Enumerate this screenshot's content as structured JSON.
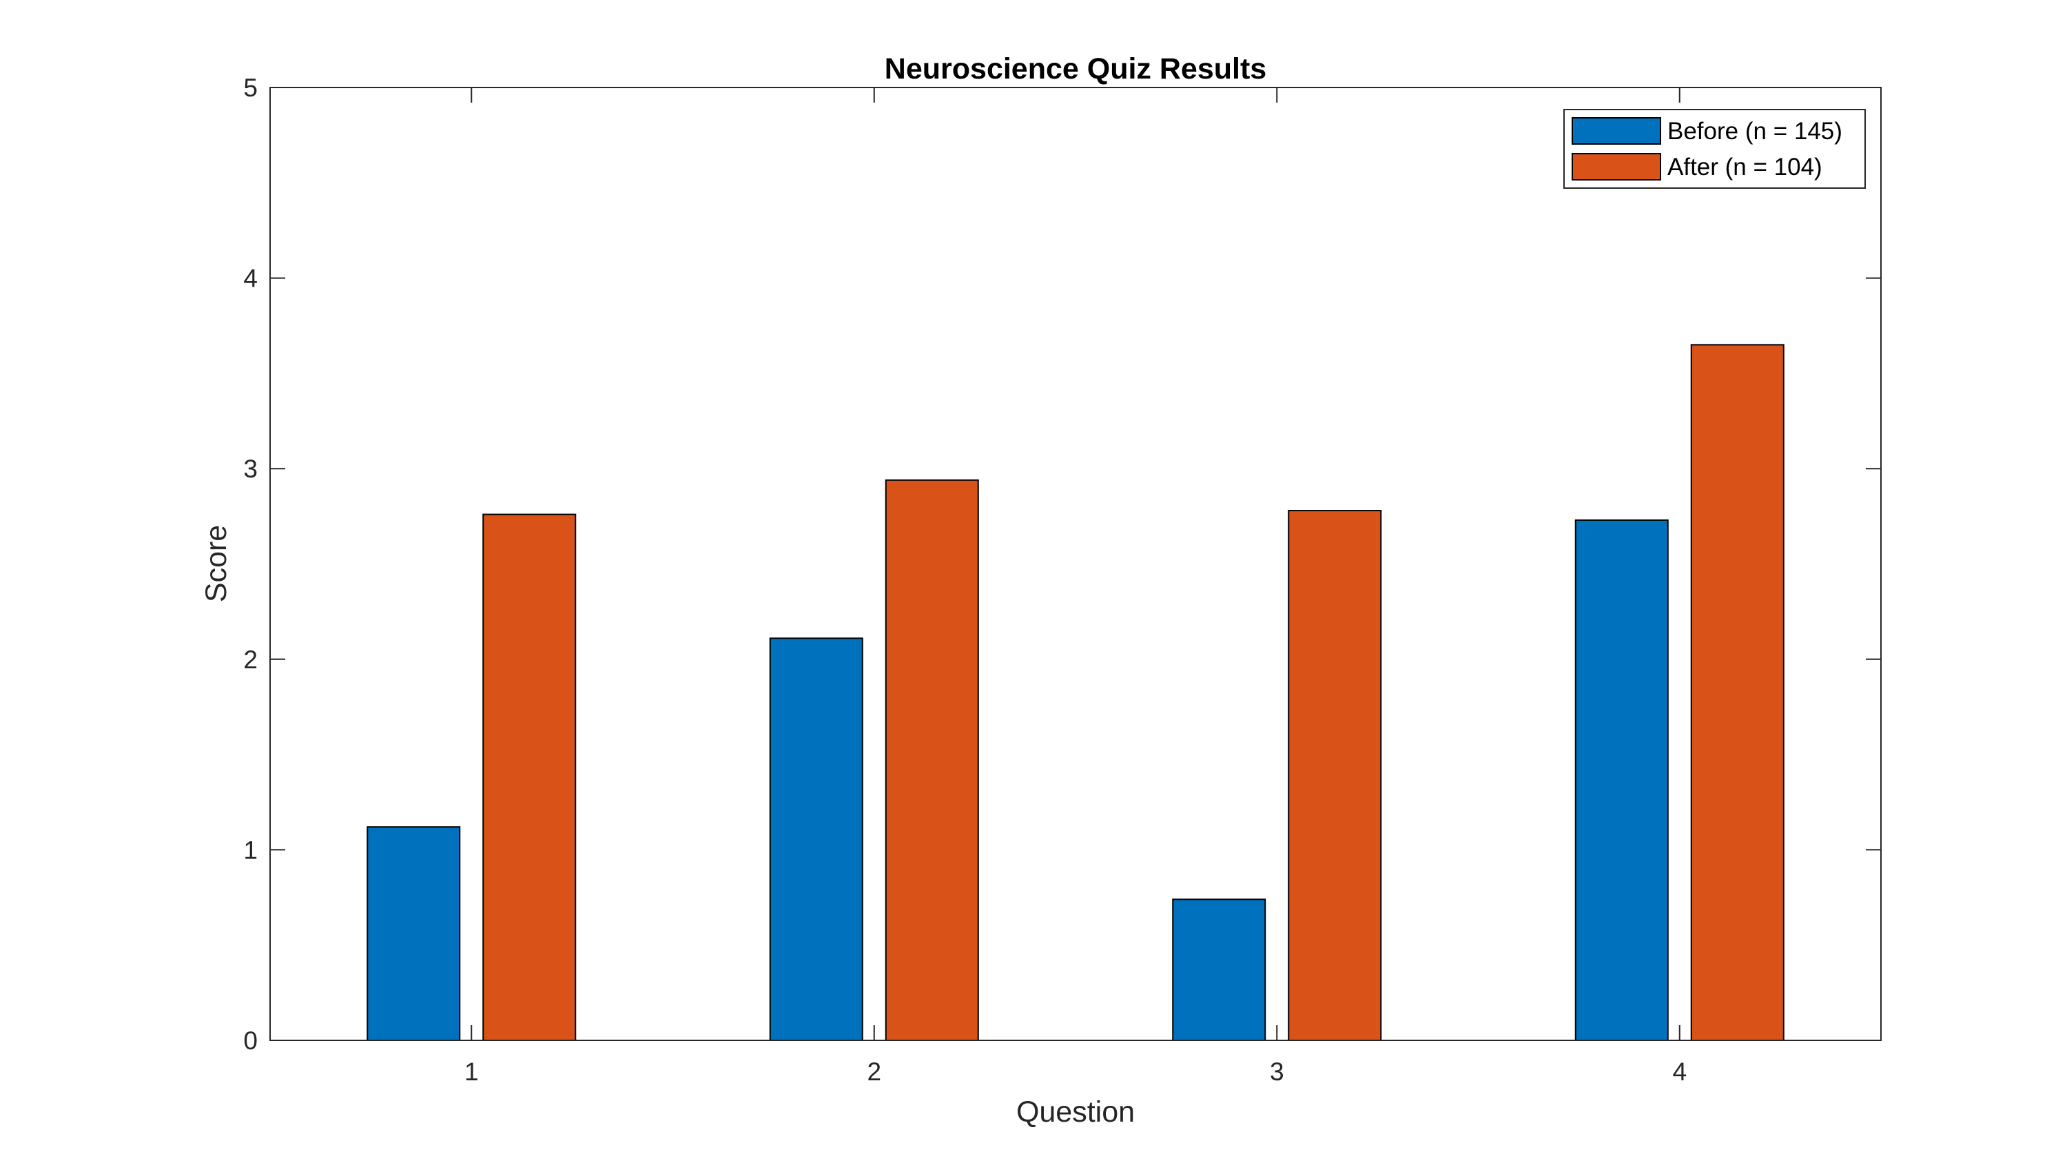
{
  "chart_data": {
    "type": "bar",
    "title": "Neuroscience Quiz Results",
    "xlabel": "Question",
    "ylabel": "Score",
    "categories": [
      "1",
      "2",
      "3",
      "4"
    ],
    "series": [
      {
        "name": "Before (n = 145)",
        "values": [
          1.12,
          2.11,
          0.74,
          2.73
        ],
        "color": "#0072BD"
      },
      {
        "name": "After (n = 104)",
        "values": [
          2.76,
          2.94,
          2.78,
          3.65
        ],
        "color": "#D95319"
      }
    ],
    "ylim": [
      0,
      5
    ],
    "yticks": [
      "0",
      "1",
      "2",
      "3",
      "4",
      "5"
    ],
    "grid": false,
    "legend_position": "top-right"
  }
}
